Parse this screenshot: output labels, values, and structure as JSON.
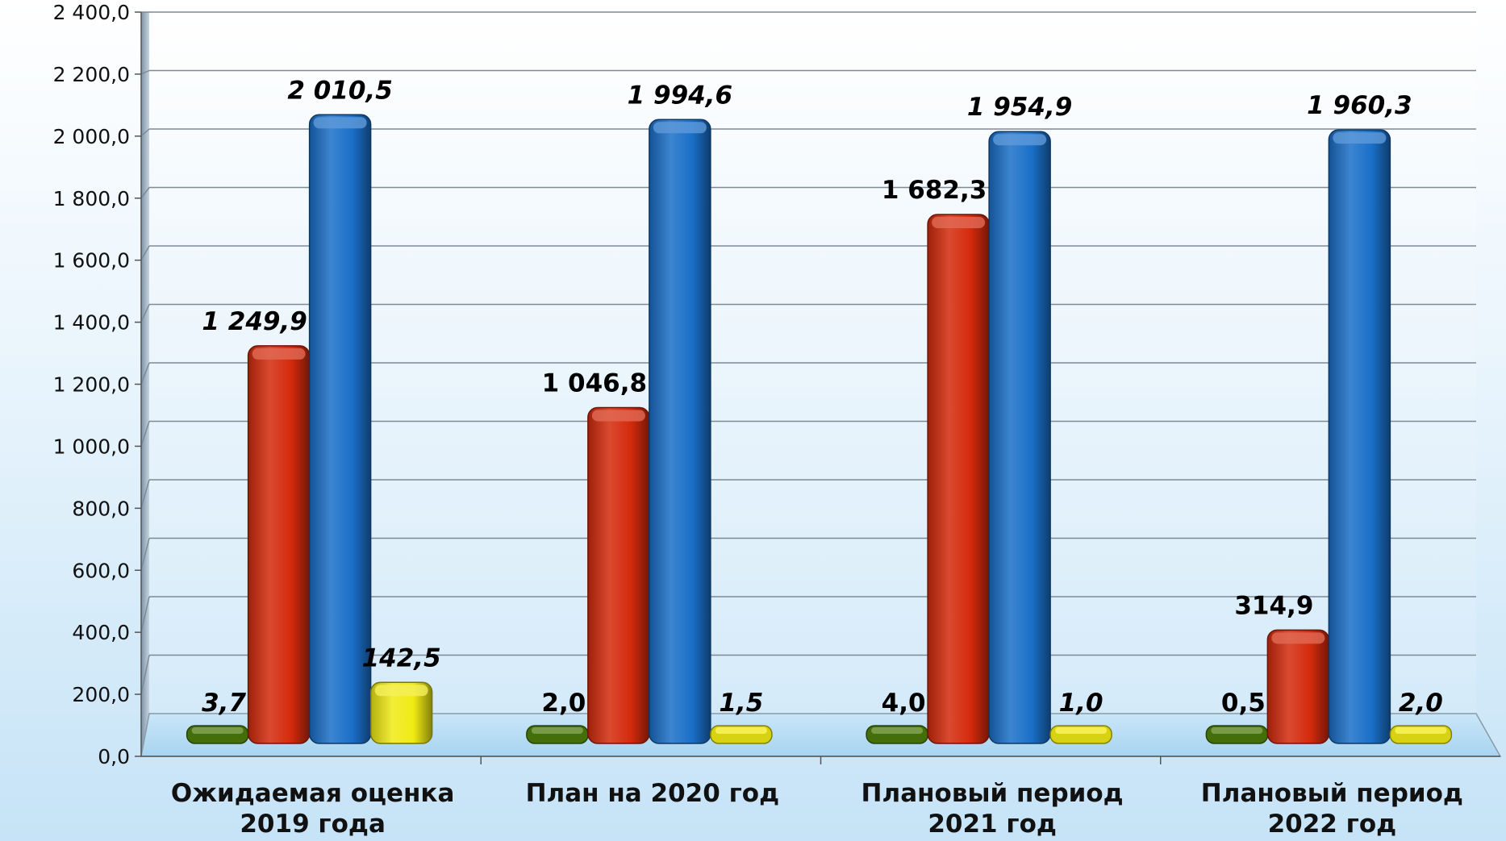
{
  "chart_data": {
    "type": "bar",
    "categories": [
      [
        "Ожидаемая оценка",
        "2019 года"
      ],
      [
        "План на 2020 год"
      ],
      [
        "Плановый период",
        "2021 год"
      ],
      [
        "Плановый период",
        "2022 год"
      ]
    ],
    "series": [
      {
        "color": "#4a7a0a",
        "values": [
          3.7,
          2.0,
          4.0,
          0.5
        ],
        "labels": [
          "3,7",
          "2,0",
          "4,0",
          "0,5"
        ],
        "label_italic": [
          true,
          false,
          false,
          false
        ]
      },
      {
        "color": "#d42a0c",
        "values": [
          1249.9,
          1046.8,
          1682.3,
          314.9
        ],
        "labels": [
          "1 249,9",
          "1 046,8",
          "1 682,3",
          "314,9"
        ],
        "label_italic": [
          true,
          false,
          false,
          false
        ]
      },
      {
        "color": "#1a6fc8",
        "values": [
          2010.5,
          1994.6,
          1954.9,
          1960.3
        ],
        "labels": [
          "2 010,5",
          "1 994,6",
          "1 954,9",
          "1 960,3"
        ],
        "label_italic": [
          true,
          true,
          true,
          true
        ]
      },
      {
        "color": "#f0ea14",
        "values": [
          142.5,
          1.5,
          1.0,
          2.0
        ],
        "labels": [
          "142,5",
          "1,5",
          "1,0",
          "2,0"
        ],
        "label_italic": [
          true,
          true,
          true,
          true
        ]
      }
    ],
    "ylim": [
      0,
      2400
    ],
    "ytick_labels": [
      "0,0",
      "200,0",
      "400,0",
      "600,0",
      "800,0",
      "1 000,0",
      "1 200,0",
      "1 400,0",
      "1 600,0",
      "1 800,0",
      "2 000,0",
      "2 200,0",
      "2 400,0"
    ],
    "grid": true,
    "legend": "none",
    "style": "3d-cylinder-bars"
  }
}
